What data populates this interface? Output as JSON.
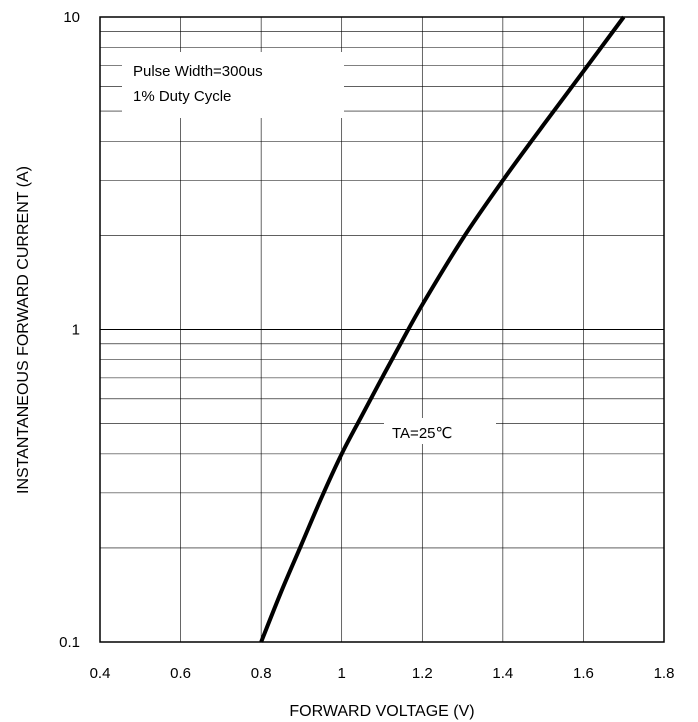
{
  "chart_data": {
    "type": "line",
    "title": "",
    "xlabel": "FORWARD VOLTAGE (V)",
    "ylabel": "INSTANTANEOUS FORWARD CURRENT (A)",
    "xlim": [
      0.4,
      1.8
    ],
    "ylim": [
      0.1,
      10
    ],
    "yscale": "log",
    "grid": true,
    "x_ticks": [
      0.4,
      0.6,
      0.8,
      1.0,
      1.2,
      1.4,
      1.6,
      1.8
    ],
    "x_tick_labels": [
      "0.4",
      "0.6",
      "0.8",
      "1",
      "1.2",
      "1.4",
      "1.6",
      "1.8"
    ],
    "y_ticks": [
      0.1,
      1,
      10
    ],
    "y_tick_labels": [
      "0.1",
      "1",
      "10"
    ],
    "series": [
      {
        "x": [
          0.8,
          0.85,
          0.9,
          0.95,
          1.0,
          1.05,
          1.1,
          1.15,
          1.2,
          1.3,
          1.4,
          1.5,
          1.6,
          1.7
        ],
        "y": [
          0.1,
          0.145,
          0.205,
          0.29,
          0.4,
          0.53,
          0.7,
          0.92,
          1.2,
          1.95,
          3.0,
          4.5,
          6.7,
          10.0
        ],
        "color": "#000000"
      }
    ],
    "annotations": {
      "note_line1": "Pulse Width=300us",
      "note_line2": "1% Duty Cycle",
      "condition": "TA=25℃"
    }
  }
}
